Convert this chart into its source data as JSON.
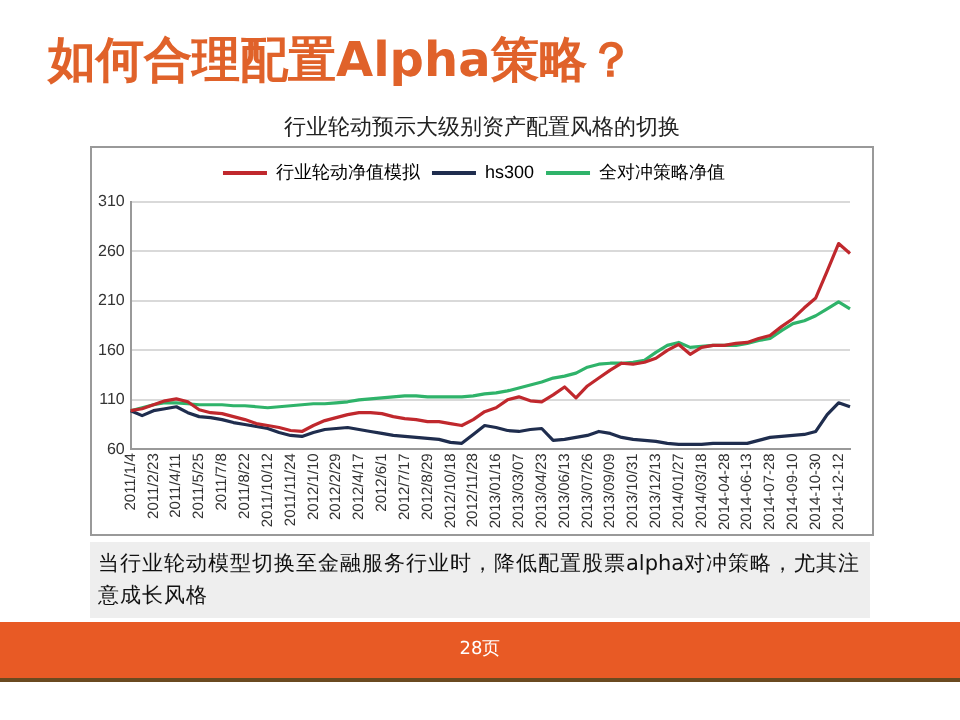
{
  "chart_data": {
    "type": "line",
    "title": "如何合理配置Alpha策略？",
    "subtitle": "行业轮动预示大级别资产配置风格的切换",
    "annotations": [
      "当行业轮动模型切换至金融服务行业时，降低配置股票alpha对冲策略，尤其注意成长风格",
      "28页"
    ],
    "categories": [
      "2011/1/4",
      null,
      "2011/2/23",
      null,
      "2011/4/11",
      null,
      "2011/5/25",
      null,
      "2011/7/8",
      null,
      "2011/8/22",
      null,
      "2011/10/12",
      null,
      "2011/11/24",
      null,
      "2012/1/10",
      null,
      "2012/2/29",
      null,
      "2012/4/17",
      null,
      "2012/6/1",
      null,
      "2012/7/17",
      null,
      "2012/8/29",
      null,
      "2012/10/18",
      null,
      "2012/11/28",
      null,
      "2013/01/16",
      null,
      "2013/03/07",
      null,
      "2013/04/23",
      null,
      "2013/06/13",
      null,
      "2013/07/26",
      null,
      "2013/09/09",
      null,
      "2013/10/31",
      null,
      "2013/12/13",
      null,
      "2014/01/27",
      null,
      "2014/03/18",
      null,
      "2014-04-28",
      null,
      "2014-06-13",
      null,
      "2014-07-28",
      null,
      "2014-09-10",
      null,
      "2014-10-30",
      null,
      "2014-12-12",
      null
    ],
    "series": [
      {
        "name": "行业轮动净值模拟",
        "color": "#c0282d",
        "values": [
          99,
          101,
          105,
          109,
          111,
          108,
          100,
          97,
          96,
          93,
          90,
          86,
          84,
          82,
          79,
          78,
          84,
          89,
          92,
          95,
          97,
          97,
          96,
          93,
          91,
          90,
          88,
          88,
          86,
          84,
          90,
          98,
          102,
          110,
          113,
          109,
          108,
          115,
          123,
          112,
          124,
          132,
          140,
          147,
          146,
          148,
          152,
          160,
          166,
          156,
          163,
          165,
          165,
          167,
          168,
          172,
          175,
          184,
          192,
          203,
          213,
          240,
          268,
          258
        ]
      },
      {
        "name": "hs300",
        "color": "#1f2d4e",
        "values": [
          99,
          94,
          99,
          101,
          103,
          97,
          93,
          92,
          90,
          87,
          85,
          83,
          81,
          77,
          74,
          73,
          77,
          80,
          81,
          82,
          80,
          78,
          76,
          74,
          73,
          72,
          71,
          70,
          67,
          66,
          75,
          84,
          82,
          79,
          78,
          80,
          81,
          69,
          70,
          72,
          74,
          78,
          76,
          72,
          70,
          69,
          68,
          66,
          65,
          65,
          65,
          66,
          66,
          66,
          66,
          69,
          72,
          73,
          74,
          75,
          78,
          95,
          107,
          103
        ]
      },
      {
        "name": "全对冲策略净值",
        "color": "#2fb36a",
        "values": [
          99,
          102,
          105,
          107,
          107,
          106,
          105,
          105,
          105,
          104,
          104,
          103,
          102,
          103,
          104,
          105,
          106,
          106,
          107,
          108,
          110,
          111,
          112,
          113,
          114,
          114,
          113,
          113,
          113,
          113,
          114,
          116,
          117,
          119,
          122,
          125,
          128,
          132,
          134,
          137,
          143,
          146,
          147,
          147,
          148,
          150,
          158,
          165,
          168,
          163,
          164,
          165,
          165,
          165,
          167,
          170,
          172,
          180,
          187,
          190,
          195,
          202,
          209,
          202
        ]
      }
    ],
    "ylim": [
      60,
      310
    ],
    "yticks": [
      60,
      110,
      160,
      210,
      260,
      310
    ],
    "grid": "y",
    "legend": "top",
    "marker": "none",
    "line_style": "solid"
  }
}
